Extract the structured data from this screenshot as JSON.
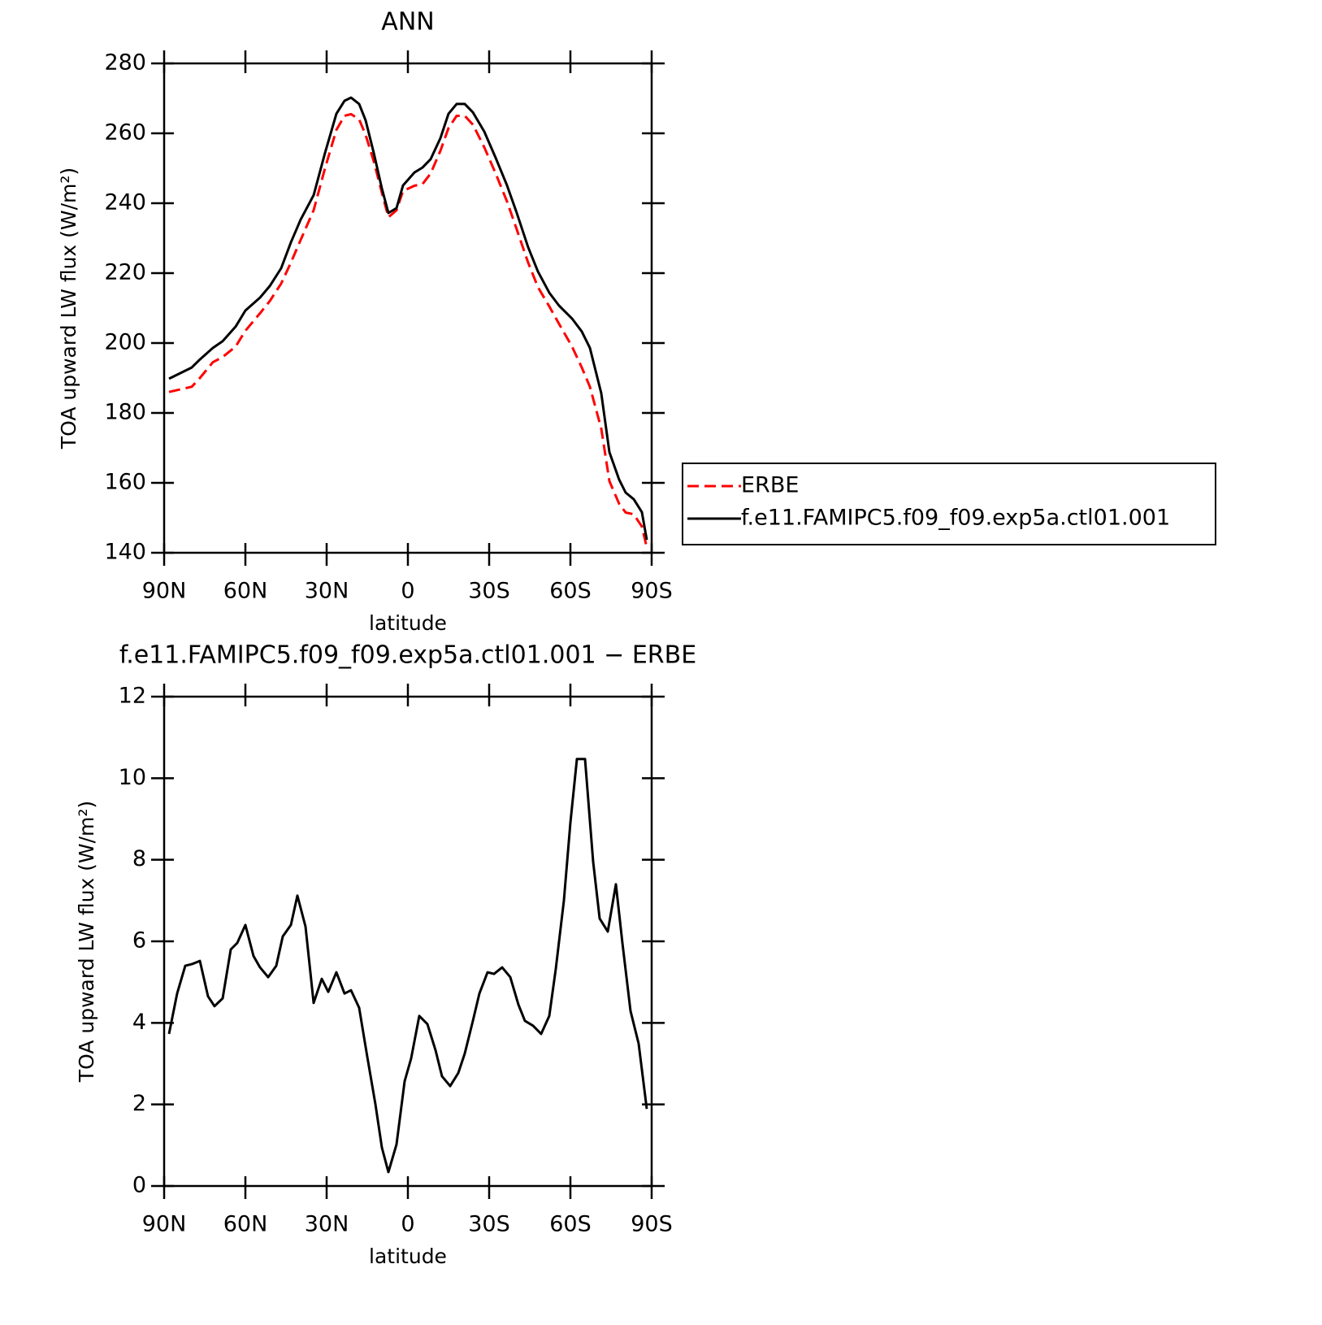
{
  "chart_data": [
    {
      "type": "line",
      "title": "ANN",
      "xlabel": "latitude",
      "ylabel": "TOA upward LW flux (W/m²)",
      "x": [
        88.2,
        79.8,
        76.8,
        72,
        68.4,
        63.6,
        60,
        54.6,
        51,
        46.8,
        43.2,
        39.6,
        34.8,
        30.6,
        26.4,
        23.4,
        21,
        18,
        15.6,
        12.6,
        9.6,
        7.2,
        4.2,
        1.8,
        -2.4,
        -5.4,
        -8.4,
        -12,
        -15,
        -18,
        -21,
        -24,
        -28.2,
        -32.4,
        -36.6,
        -40.2,
        -44.4,
        -48,
        -52.2,
        -55.8,
        -60.6,
        -64.2,
        -67.2,
        -71.4,
        -74.4,
        -78,
        -80.4,
        -83.4,
        -86.4,
        -88.2
      ],
      "series": [
        {
          "name": "ERBE",
          "color": "#ff0000",
          "linestyle": "dashed",
          "values": [
            186.0,
            187.5,
            190.0,
            194.5,
            196.0,
            199.0,
            203.5,
            208.5,
            212.0,
            217.0,
            223.0,
            229.5,
            238.0,
            250.0,
            261.0,
            265.0,
            265.5,
            264.0,
            259.5,
            252.0,
            243.0,
            236.0,
            238.0,
            243.5,
            245.0,
            245.5,
            248.5,
            255.0,
            261.5,
            265.0,
            265.0,
            262.5,
            256.0,
            248.5,
            240.5,
            232.5,
            223.0,
            216.0,
            210.5,
            205.5,
            199.0,
            193.0,
            187.5,
            175.5,
            160.5,
            154.0,
            151.5,
            151.0,
            147.5,
            141.5
          ]
        },
        {
          "name": "f.e11.FAMIPC5.f09_f09.exp5a.ctl01.001",
          "color": "#000000",
          "linestyle": "solid",
          "values": [
            189.8,
            193.0,
            195.3,
            198.6,
            200.5,
            204.7,
            209.3,
            213.0,
            216.3,
            221.4,
            228.8,
            235.3,
            242.3,
            254.4,
            265.6,
            269.3,
            270.2,
            268.4,
            263.7,
            254.4,
            244.2,
            237.2,
            238.6,
            245.1,
            248.8,
            250.2,
            252.6,
            258.6,
            265.6,
            268.4,
            268.4,
            266.0,
            260.5,
            253.0,
            245.1,
            237.2,
            227.4,
            220.5,
            214.4,
            210.7,
            207.0,
            203.3,
            198.6,
            185.6,
            168.8,
            160.9,
            157.2,
            155.3,
            151.6,
            143.7
          ]
        }
      ],
      "xlim": [
        90,
        -90
      ],
      "xticks": [
        {
          "value": 90,
          "label": "90N"
        },
        {
          "value": 60,
          "label": "60N"
        },
        {
          "value": 30,
          "label": "30N"
        },
        0,
        {
          "value": -30,
          "label": "30S"
        },
        {
          "value": -60,
          "label": "60S"
        },
        {
          "value": -90,
          "label": "90S"
        }
      ],
      "ylim": [
        140,
        280
      ],
      "yticks": [
        140,
        160,
        180,
        200,
        220,
        240,
        260,
        280
      ],
      "legend": "right"
    },
    {
      "type": "line",
      "title": "f.e11.FAMIPC5.f09_f09.exp5a.ctl01.001 − ERBE",
      "xlabel": "latitude",
      "ylabel": "TOA upward LW flux (W/m²)",
      "x": [
        88.2,
        85.2,
        82.2,
        79.8,
        76.8,
        73.8,
        71.4,
        68.4,
        65.4,
        63,
        60,
        57,
        54.6,
        51.6,
        48.6,
        46.2,
        43.2,
        40.8,
        37.8,
        34.8,
        31.8,
        29.4,
        26.4,
        23.4,
        21,
        18,
        15,
        12,
        9.6,
        7.2,
        4.2,
        1.2,
        -1.2,
        -4.2,
        -7.2,
        -10.2,
        -12.6,
        -15.6,
        -18.6,
        -21,
        -24,
        -26.4,
        -29.4,
        -31.8,
        -34.8,
        -37.8,
        -40.8,
        -43.2,
        -46.2,
        -49.2,
        -52.2,
        -54.6,
        -57.6,
        -60,
        -62.4,
        -65.4,
        -68.4,
        -70.8,
        -73.8,
        -76.8,
        -79.2,
        -82.2,
        -85.2,
        -88.2
      ],
      "values": [
        3.73,
        4.72,
        5.4,
        5.44,
        5.52,
        4.65,
        4.41,
        4.6,
        5.8,
        5.96,
        6.4,
        5.64,
        5.36,
        5.12,
        5.4,
        6.12,
        6.4,
        7.12,
        6.36,
        4.49,
        5.08,
        4.76,
        5.24,
        4.72,
        4.8,
        4.37,
        3.17,
        2.01,
        0.94,
        0.34,
        1.02,
        2.57,
        3.13,
        4.17,
        3.97,
        3.33,
        2.69,
        2.45,
        2.77,
        3.25,
        4.05,
        4.72,
        5.24,
        5.2,
        5.36,
        5.12,
        4.45,
        4.05,
        3.93,
        3.73,
        4.17,
        5.32,
        7.0,
        8.91,
        10.47,
        10.47,
        7.95,
        6.56,
        6.24,
        7.4,
        5.96,
        4.29,
        3.49,
        1.89
      ],
      "color": "#000000",
      "linestyle": "solid",
      "xlim": [
        90,
        -90
      ],
      "xticks": [
        {
          "value": 90,
          "label": "90N"
        },
        {
          "value": 60,
          "label": "60N"
        },
        {
          "value": 30,
          "label": "30N"
        },
        0,
        {
          "value": -30,
          "label": "30S"
        },
        {
          "value": -60,
          "label": "60S"
        },
        {
          "value": -90,
          "label": "90S"
        }
      ],
      "ylim": [
        0,
        12
      ],
      "yticks": [
        0,
        2,
        4,
        6,
        8,
        10,
        12
      ]
    }
  ]
}
